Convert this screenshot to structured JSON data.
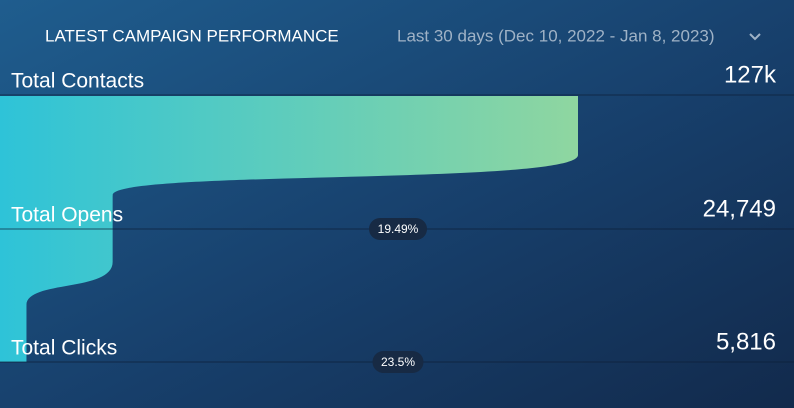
{
  "chart_data": {
    "type": "funnel",
    "title": "LATEST CAMPAIGN PERFORMANCE",
    "date_range": "Last 30 days (Dec 10, 2022 - Jan 8, 2023)",
    "categories": [
      "Total Contacts",
      "Total Opens",
      "Total Clicks"
    ],
    "values": [
      127000,
      24749,
      5816
    ],
    "value_labels": [
      "127k",
      "24,749",
      "5,816"
    ],
    "conversion_rates": [
      19.49,
      23.5
    ],
    "conversion_rate_labels": [
      "19.49%",
      "23.5%"
    ],
    "colors": [
      "#2ec3d8",
      "#8fd6a0"
    ]
  }
}
